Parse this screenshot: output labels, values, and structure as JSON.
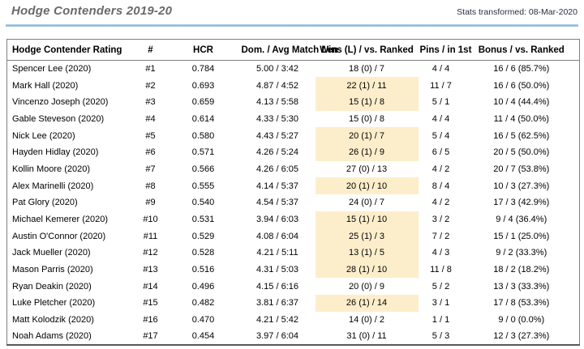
{
  "header": {
    "title": "Hodge Contenders 2019-20",
    "stats_note": "Stats transformed: 08-Mar-2020"
  },
  "colors": {
    "accent_line": "#7fb0de",
    "wins_highlight": "#fdeecb",
    "title_gray": "#6a6a6a"
  },
  "table": {
    "columns": [
      "Hodge Contender Rating",
      "#",
      "HCR",
      "Dom. / Avg Match Len",
      "Wins (L) / vs. Ranked",
      "Pins / in 1st",
      "Bonus / vs. Ranked"
    ],
    "rows": [
      {
        "name": "Spencer Lee (2020)",
        "rank": "#1",
        "hcr": "0.784",
        "dom": "5.00 / 3:42",
        "wins": "18 (0) / 7",
        "wins_highlight": false,
        "pins": "4 / 4",
        "bonus": "16 / 6 (85.7%)"
      },
      {
        "name": "Mark Hall (2020)",
        "rank": "#2",
        "hcr": "0.693",
        "dom": "4.87 / 4:52",
        "wins": "22 (1) / 11",
        "wins_highlight": true,
        "pins": "11 / 7",
        "bonus": "16 / 6 (50.0%)"
      },
      {
        "name": "Vincenzo Joseph (2020)",
        "rank": "#3",
        "hcr": "0.659",
        "dom": "4.13 / 5:58",
        "wins": "15 (1) / 8",
        "wins_highlight": true,
        "pins": "5 / 1",
        "bonus": "10 / 4 (44.4%)"
      },
      {
        "name": "Gable Steveson (2020)",
        "rank": "#4",
        "hcr": "0.614",
        "dom": "4.33 / 5:30",
        "wins": "15 (0) / 8",
        "wins_highlight": false,
        "pins": "4 / 4",
        "bonus": "11 / 4 (50.0%)"
      },
      {
        "name": "Nick Lee (2020)",
        "rank": "#5",
        "hcr": "0.580",
        "dom": "4.43 / 5:27",
        "wins": "20 (1) / 7",
        "wins_highlight": true,
        "pins": "5 / 4",
        "bonus": "16 / 5 (62.5%)"
      },
      {
        "name": "Hayden Hidlay (2020)",
        "rank": "#6",
        "hcr": "0.571",
        "dom": "4.26 / 5:24",
        "wins": "26 (1) / 9",
        "wins_highlight": true,
        "pins": "6 / 5",
        "bonus": "20 / 5 (50.0%)"
      },
      {
        "name": "Kollin Moore (2020)",
        "rank": "#7",
        "hcr": "0.566",
        "dom": "4.26 / 6:05",
        "wins": "27 (0) / 13",
        "wins_highlight": false,
        "pins": "4 / 2",
        "bonus": "20 / 7 (53.8%)"
      },
      {
        "name": "Alex Marinelli (2020)",
        "rank": "#8",
        "hcr": "0.555",
        "dom": "4.14 / 5:37",
        "wins": "20 (1) / 10",
        "wins_highlight": true,
        "pins": "8 / 4",
        "bonus": "10 / 3 (27.3%)"
      },
      {
        "name": "Pat Glory (2020)",
        "rank": "#9",
        "hcr": "0.540",
        "dom": "4.54 / 5:37",
        "wins": "24 (0) / 7",
        "wins_highlight": false,
        "pins": "4 / 2",
        "bonus": "17 / 3 (42.9%)"
      },
      {
        "name": "Michael Kemerer (2020)",
        "rank": "#10",
        "hcr": "0.531",
        "dom": "3.94 / 6:03",
        "wins": "15 (1) / 10",
        "wins_highlight": true,
        "pins": "3 / 2",
        "bonus": "9 / 4 (36.4%)"
      },
      {
        "name": "Austin O'Connor (2020)",
        "rank": "#11",
        "hcr": "0.529",
        "dom": "4.08 / 6:04",
        "wins": "25 (1) / 3",
        "wins_highlight": true,
        "pins": "7 / 2",
        "bonus": "15 / 1 (25.0%)"
      },
      {
        "name": "Jack Mueller (2020)",
        "rank": "#12",
        "hcr": "0.528",
        "dom": "4.21 / 5:11",
        "wins": "13 (1) / 5",
        "wins_highlight": true,
        "pins": "4 / 3",
        "bonus": "9 / 2 (33.3%)"
      },
      {
        "name": "Mason Parris (2020)",
        "rank": "#13",
        "hcr": "0.516",
        "dom": "4.31 / 5:03",
        "wins": "28 (1) / 10",
        "wins_highlight": true,
        "pins": "11 / 8",
        "bonus": "18 / 2 (18.2%)"
      },
      {
        "name": "Ryan Deakin (2020)",
        "rank": "#14",
        "hcr": "0.496",
        "dom": "4.15 / 6:16",
        "wins": "20 (0) / 9",
        "wins_highlight": false,
        "pins": "5 / 2",
        "bonus": "13 / 3 (33.3%)"
      },
      {
        "name": "Luke Pletcher (2020)",
        "rank": "#15",
        "hcr": "0.482",
        "dom": "3.81 / 6:37",
        "wins": "26 (1) / 14",
        "wins_highlight": true,
        "pins": "3 / 1",
        "bonus": "17 / 8 (53.3%)"
      },
      {
        "name": "Matt Kolodzik (2020)",
        "rank": "#16",
        "hcr": "0.470",
        "dom": "4.21 / 5:42",
        "wins": "14 (0) / 2",
        "wins_highlight": false,
        "pins": "1 / 1",
        "bonus": "9 / 0 (0.0%)"
      },
      {
        "name": "Noah Adams (2020)",
        "rank": "#17",
        "hcr": "0.454",
        "dom": "3.97 / 6:04",
        "wins": "31 (0) / 11",
        "wins_highlight": false,
        "pins": "5 / 3",
        "bonus": "12 / 3 (27.3%)"
      }
    ]
  }
}
